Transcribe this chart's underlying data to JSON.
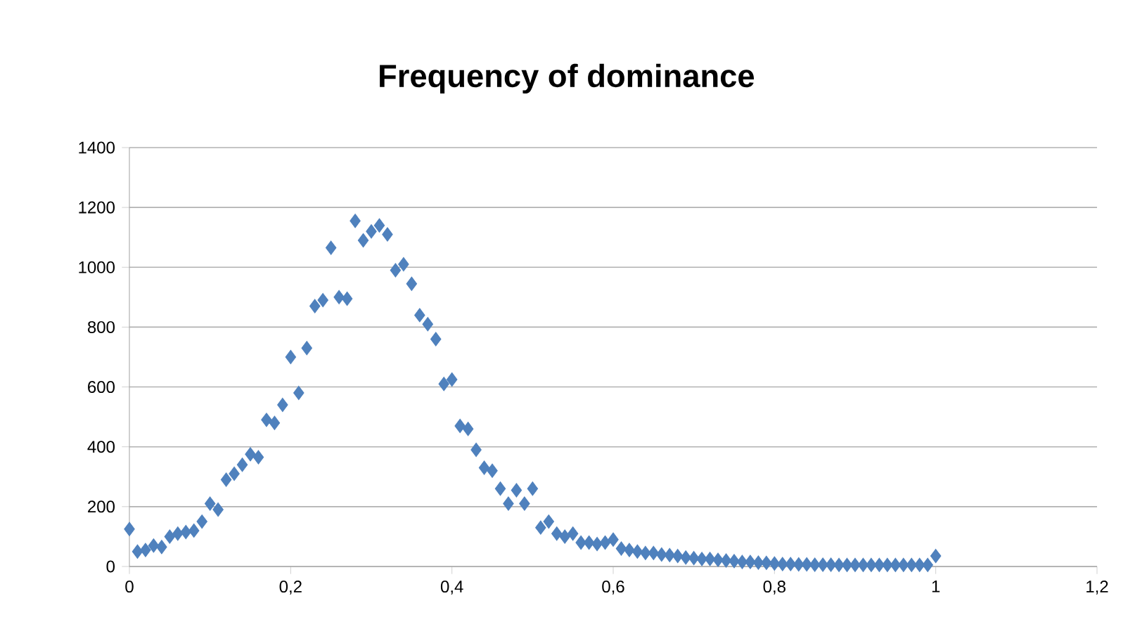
{
  "chart_data": {
    "type": "scatter",
    "title": "Frequency of dominance",
    "x": [
      0,
      0.01,
      0.02,
      0.03,
      0.04,
      0.05,
      0.06,
      0.07,
      0.08,
      0.09,
      0.1,
      0.11,
      0.12,
      0.13,
      0.14,
      0.15,
      0.16,
      0.17,
      0.18,
      0.19,
      0.2,
      0.21,
      0.22,
      0.23,
      0.24,
      0.25,
      0.26,
      0.27,
      0.28,
      0.29,
      0.3,
      0.31,
      0.32,
      0.33,
      0.34,
      0.35,
      0.36,
      0.37,
      0.38,
      0.39,
      0.4,
      0.41,
      0.42,
      0.43,
      0.44,
      0.45,
      0.46,
      0.47,
      0.48,
      0.49,
      0.5,
      0.51,
      0.52,
      0.53,
      0.54,
      0.55,
      0.56,
      0.57,
      0.58,
      0.59,
      0.6,
      0.61,
      0.62,
      0.63,
      0.64,
      0.65,
      0.66,
      0.67,
      0.68,
      0.69,
      0.7,
      0.71,
      0.72,
      0.73,
      0.74,
      0.75,
      0.76,
      0.77,
      0.78,
      0.79,
      0.8,
      0.81,
      0.82,
      0.83,
      0.84,
      0.85,
      0.86,
      0.87,
      0.88,
      0.89,
      0.9,
      0.91,
      0.92,
      0.93,
      0.94,
      0.95,
      0.96,
      0.97,
      0.98,
      0.99,
      1
    ],
    "series": [
      {
        "color": "#4f81bd",
        "values": [
          125,
          50,
          55,
          70,
          65,
          100,
          110,
          115,
          120,
          150,
          210,
          190,
          290,
          310,
          340,
          375,
          365,
          490,
          480,
          540,
          700,
          580,
          730,
          870,
          890,
          1065,
          900,
          895,
          1155,
          1090,
          1120,
          1140,
          1110,
          990,
          1010,
          945,
          840,
          810,
          760,
          610,
          625,
          470,
          460,
          390,
          330,
          320,
          260,
          210,
          255,
          210,
          260,
          130,
          150,
          110,
          100,
          110,
          80,
          80,
          75,
          80,
          90,
          60,
          55,
          50,
          45,
          45,
          40,
          38,
          35,
          30,
          28,
          25,
          25,
          22,
          20,
          18,
          15,
          15,
          13,
          12,
          10,
          8,
          8,
          7,
          7,
          6,
          6,
          6,
          5,
          5,
          5,
          5,
          5,
          5,
          5,
          5,
          5,
          5,
          5,
          5,
          35
        ]
      }
    ],
    "xlim": [
      0,
      1.2
    ],
    "ylim": [
      0,
      1400
    ],
    "xticks": [
      0,
      {
        "value": 0.2,
        "label": "0,2"
      },
      {
        "value": 0.4,
        "label": "0,4"
      },
      {
        "value": 0.6,
        "label": "0,6"
      },
      {
        "value": 0.8,
        "label": "0,8"
      },
      1,
      {
        "value": 1.2,
        "label": "1,2"
      }
    ],
    "yticks": [
      0,
      200,
      400,
      600,
      800,
      1000,
      1200,
      1400
    ],
    "grid": "y",
    "legend": false,
    "marker": "diamond"
  }
}
